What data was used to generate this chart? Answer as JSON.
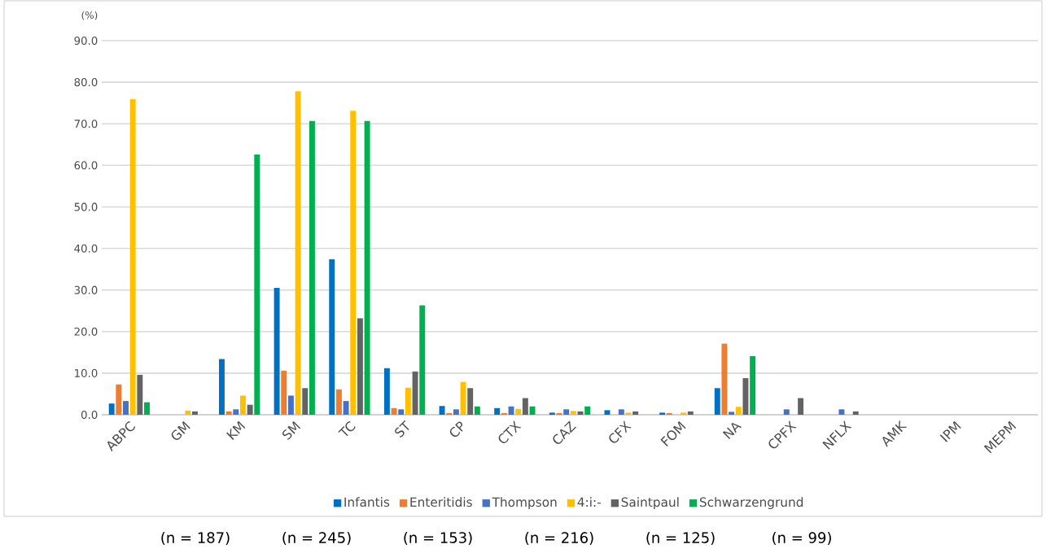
{
  "chart_data": {
    "type": "bar",
    "ylabel": "(%)",
    "categories": [
      "ABPC",
      "GM",
      "KM",
      "SM",
      "TC",
      "ST",
      "CP",
      "CTX",
      "CAZ",
      "CFX",
      "FOM",
      "NA",
      "CPFX",
      "NFLX",
      "AMK",
      "IPM",
      "MEPM"
    ],
    "series": [
      {
        "name": "Infantis",
        "color": "#0070c0",
        "values": [
          2.7,
          0,
          13.4,
          30.5,
          37.4,
          11.2,
          2.1,
          1.6,
          0.5,
          1.1,
          0.5,
          6.4,
          0,
          0,
          0,
          0,
          0
        ]
      },
      {
        "name": "Enteritidis",
        "color": "#ed7d31",
        "values": [
          7.3,
          0,
          0.8,
          10.6,
          6.1,
          1.6,
          0.4,
          0.4,
          0.4,
          0,
          0.4,
          17.1,
          0,
          0,
          0,
          0,
          0
        ]
      },
      {
        "name": "Thompson",
        "color": "#4472c4",
        "values": [
          3.3,
          0,
          1.3,
          4.6,
          3.3,
          1.3,
          1.3,
          2.0,
          1.3,
          1.3,
          0,
          0.7,
          1.3,
          1.3,
          0,
          0,
          0
        ]
      },
      {
        "name": "4:i:-",
        "color": "#ffc000",
        "values": [
          75.9,
          1.0,
          4.6,
          77.8,
          73.1,
          6.5,
          7.9,
          1.4,
          0.9,
          0.5,
          0.5,
          1.9,
          0,
          0,
          0,
          0,
          0
        ]
      },
      {
        "name": "Saintpaul",
        "color": "#636363",
        "values": [
          9.6,
          0.8,
          2.4,
          6.4,
          23.2,
          10.4,
          6.4,
          4.0,
          0.8,
          0.8,
          0.8,
          8.8,
          4.0,
          0.8,
          0,
          0,
          0
        ]
      },
      {
        "name": "Schwarzengrund",
        "color": "#00b050",
        "values": [
          3.0,
          0,
          62.6,
          70.7,
          70.7,
          26.3,
          2.0,
          2.0,
          2.0,
          0,
          0,
          14.1,
          0,
          0,
          0,
          0,
          0
        ]
      }
    ],
    "ylim": [
      0,
      90
    ],
    "yticks": [
      {
        "value": 0,
        "label": "0.0"
      },
      {
        "value": 10,
        "label": "10.0"
      },
      {
        "value": 20,
        "label": "20.0"
      },
      {
        "value": 30,
        "label": "30.0"
      },
      {
        "value": 40,
        "label": "40.0"
      },
      {
        "value": 50,
        "label": "50.0"
      },
      {
        "value": 60,
        "label": "60.0"
      },
      {
        "value": 70,
        "label": "70.0"
      },
      {
        "value": 80,
        "label": "80.0"
      },
      {
        "value": 90,
        "label": "90.0"
      }
    ],
    "grid": "y",
    "legend": "bottom",
    "annotations": [
      "(n = 187)",
      "(n = 245)",
      "(n = 153)",
      "(n = 216)",
      "(n = 125)",
      "(n = 99)"
    ]
  }
}
